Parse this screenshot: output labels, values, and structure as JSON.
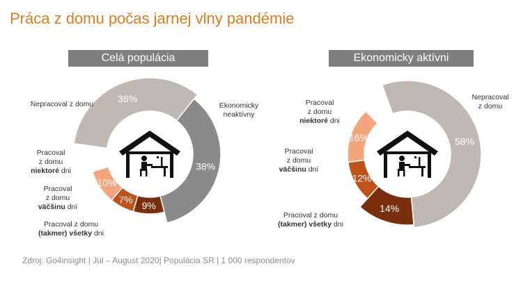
{
  "title": "Práca z domu počas jarnej vlny pandémie",
  "footer": "Zdroj: Go4insight | Júl – August  2020| Populácia SR | 1 000 respondentov",
  "chart_data": [
    {
      "type": "pie",
      "title": "Celá populácia",
      "slices": [
        {
          "label": "Nepracoval  z domu",
          "value": 36,
          "text": "36%",
          "color": "#bfb8b3"
        },
        {
          "label": "Ekonomicky neaktívny",
          "value": 38,
          "text": "38%",
          "color": "#8a8a8a"
        },
        {
          "label": "Pracoval z domu (takmer) všetky dni",
          "value": 9,
          "text": "9%",
          "color": "#7a2e0d"
        },
        {
          "label": "Pracoval z domu väčšinu dní",
          "value": 7,
          "text": "7%",
          "color": "#c0531a"
        },
        {
          "label": "Pracoval z domu niektoré dni",
          "value": 10,
          "text": "10%",
          "color": "#f4a57d"
        }
      ]
    },
    {
      "type": "pie",
      "title": "Ekonomicky  aktívni",
      "slices": [
        {
          "label": "Nepracoval z domu",
          "value": 58,
          "text": "58%",
          "color": "#bfb8b3"
        },
        {
          "label": "Pracoval z domu (takmer) všetky dni",
          "value": 14,
          "text": "14%",
          "color": "#7a2e0d"
        },
        {
          "label": "Pracoval z domu väčšinu dní",
          "value": 12,
          "text": "12%",
          "color": "#c0531a"
        },
        {
          "label": "Pracoval z domu niektoré dni",
          "value": 16,
          "text": "16%",
          "color": "#f4a57d"
        }
      ]
    }
  ],
  "labels": {
    "left_nepracoval": "Nepracoval  z domu",
    "left_neaktivny_1": "Ekonomicky",
    "left_neaktivny_2": "neaktívny",
    "left_niektore_1": "Pracoval",
    "left_niektore_2": "z domu",
    "left_niektore_3a": "niektoré",
    "left_niektore_3b": " dni",
    "left_vacsinu_1": "Pracoval",
    "left_vacsinu_2": "z domu",
    "left_vacsinu_3a": "väčšinu",
    "left_vacsinu_3b": " dní",
    "left_vsetky_1": "Pracoval  z domu",
    "left_vsetky_2a": "(takmer) všetky",
    "left_vsetky_2b": " dni",
    "right_niektore_1": "Pracoval",
    "right_niektore_2": "z domu",
    "right_niektore_3a": "niektoré",
    "right_niektore_3b": " dni",
    "right_vacsinu_1": "Pracoval",
    "right_vacsinu_2": "z domu",
    "right_vacsinu_3a": "väčšinu",
    "right_vacsinu_3b": " dní",
    "right_vsetky_1": "Pracoval z domu",
    "right_vsetky_2a": "(takmer) všetky",
    "right_vsetky_2b": " dni",
    "right_nepracoval_1": "Nepracoval",
    "right_nepracoval_2": "z domu"
  },
  "icons": {
    "center": "house-with-person-at-desk-icon"
  }
}
